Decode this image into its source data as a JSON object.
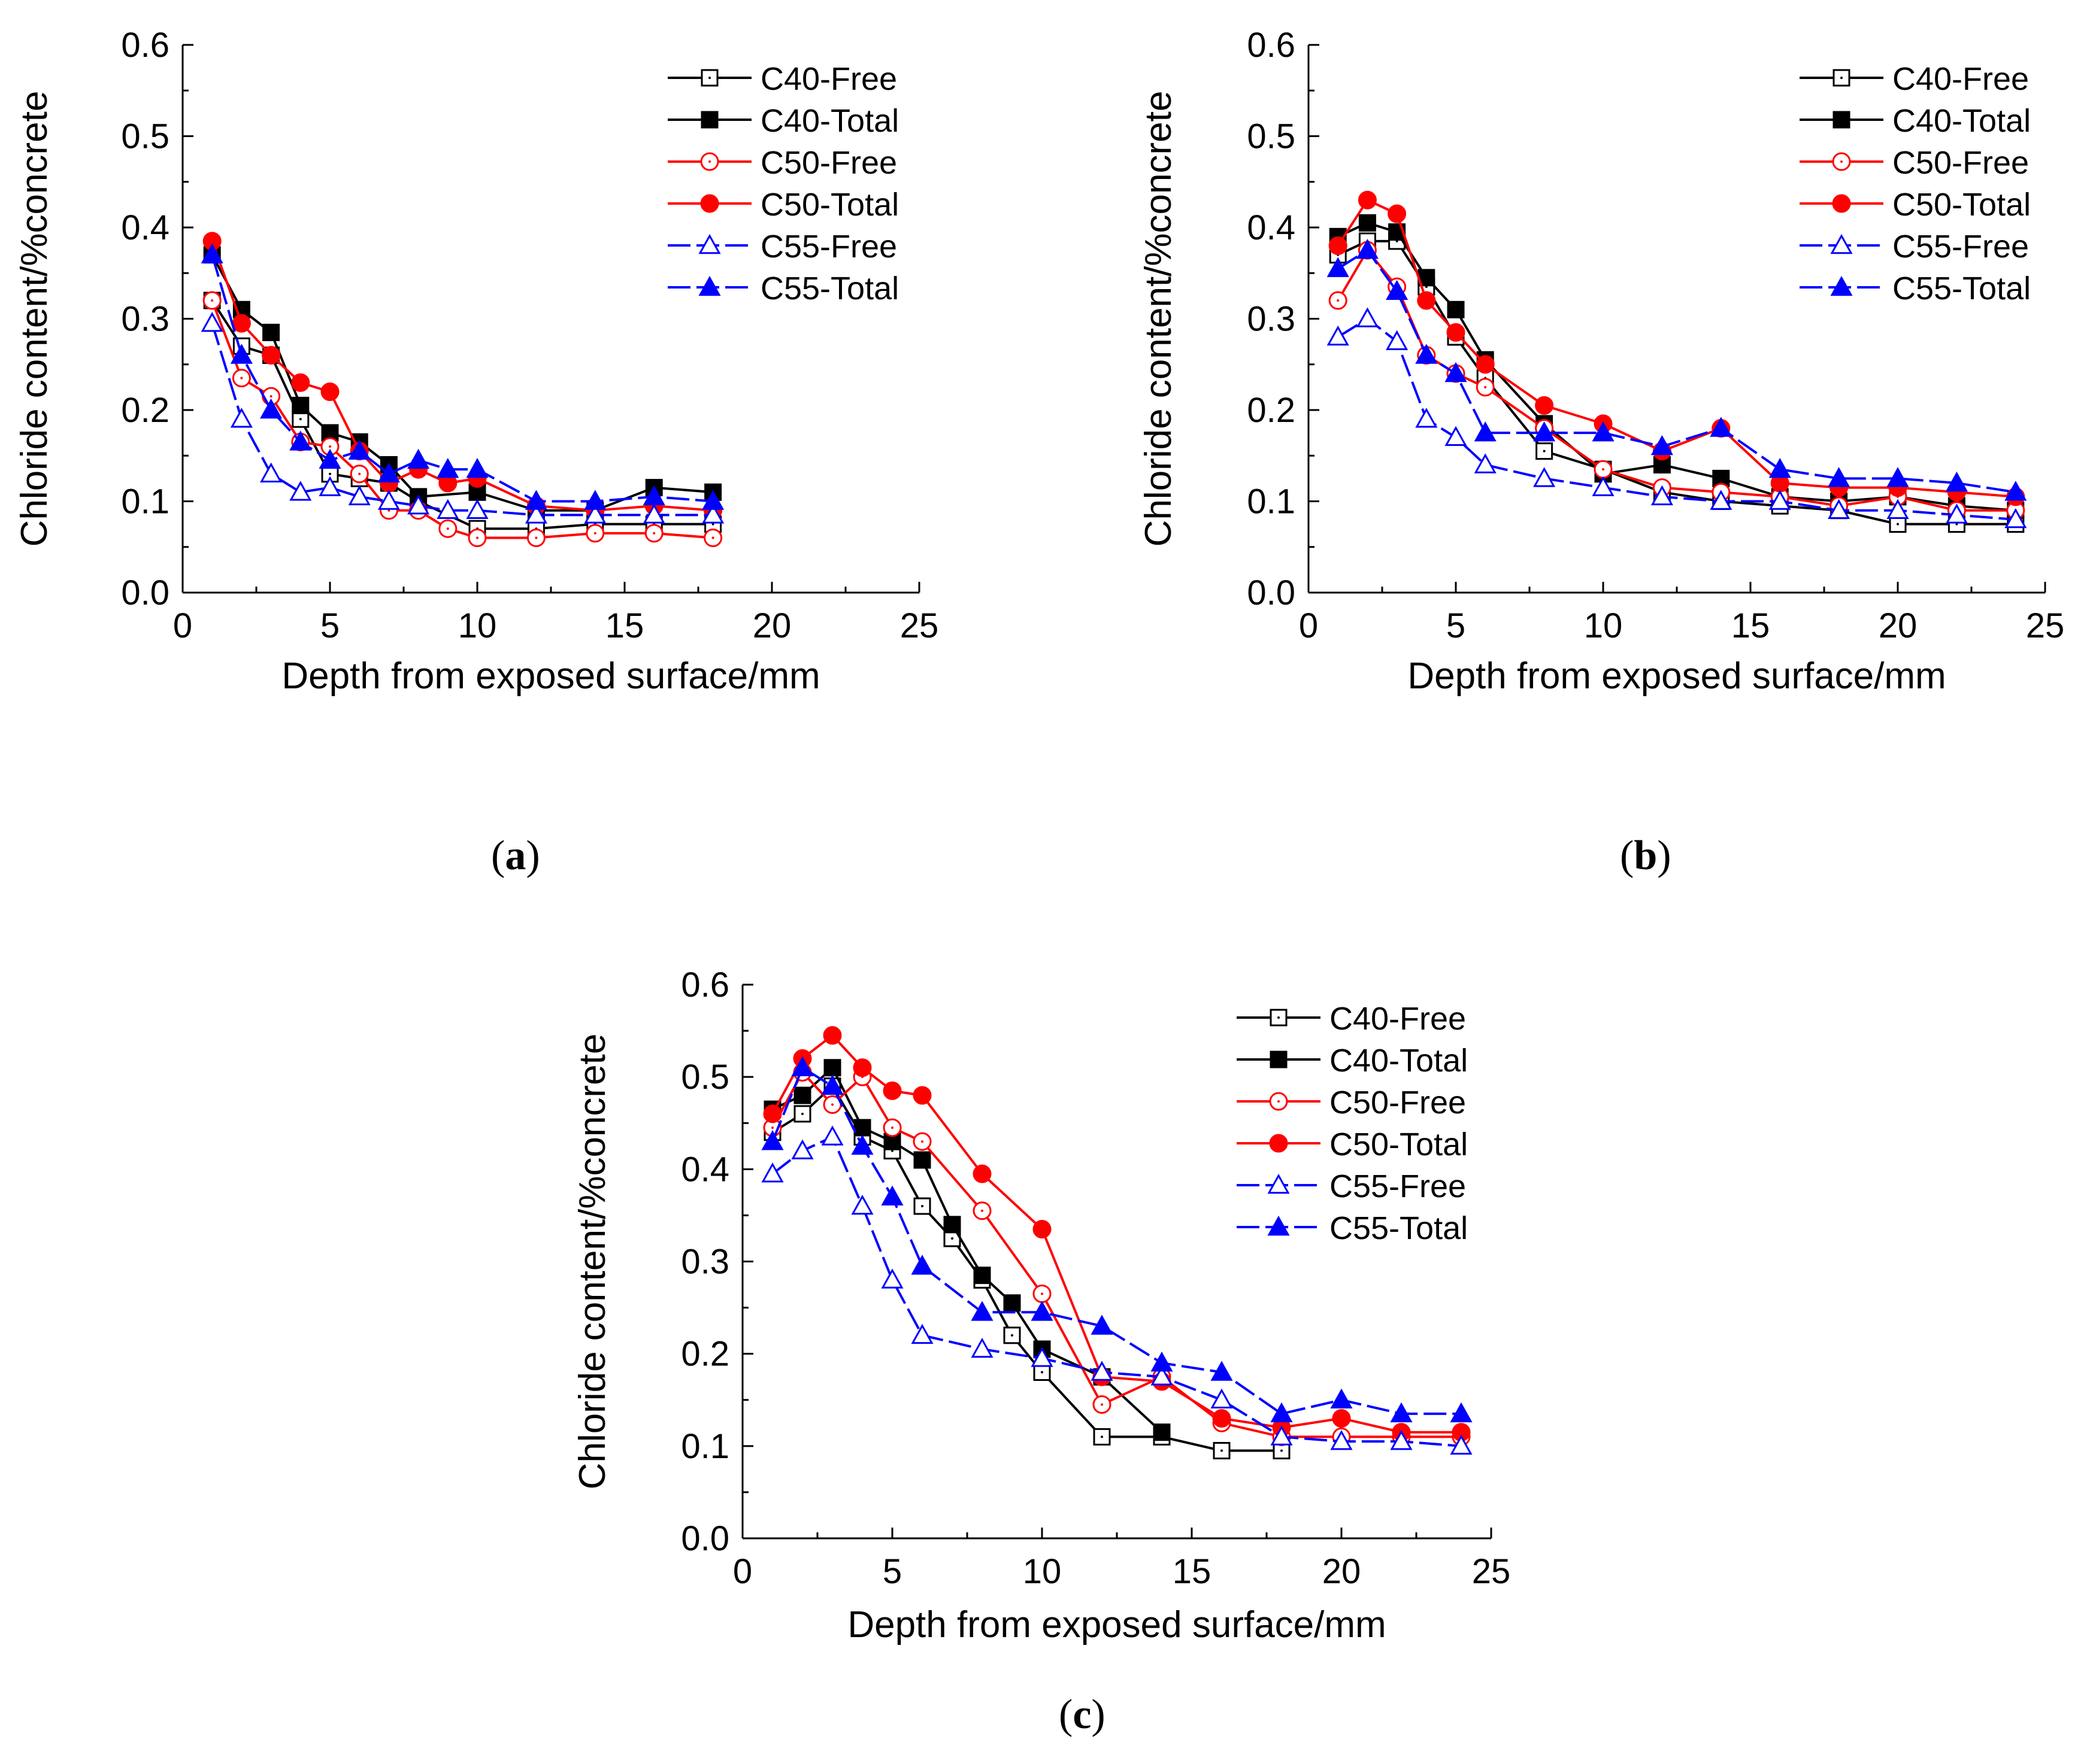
{
  "chart_data": [
    {
      "id": "a",
      "panel_label": "a",
      "type": "line",
      "xlabel": "Depth from exposed surface/mm",
      "ylabel": "Chloride content/%concrete",
      "xlim": [
        0,
        25
      ],
      "ylim": [
        0.0,
        0.6
      ],
      "xticks": [
        "0",
        "5",
        "10",
        "15",
        "20",
        "25"
      ],
      "yticks": [
        "0.0",
        "0.1",
        "0.2",
        "0.3",
        "0.4",
        "0.5",
        "0.6"
      ],
      "legend_position": "top-right",
      "grid": false,
      "series": [
        {
          "name": "C40-Free",
          "color": "#000000",
          "marker": "square-open",
          "dashed": false,
          "x": [
            1,
            2,
            3,
            4,
            5,
            6,
            7,
            8,
            10,
            12,
            14,
            16,
            18
          ],
          "y": [
            0.32,
            0.27,
            0.26,
            0.19,
            0.13,
            0.125,
            0.12,
            0.1,
            0.07,
            0.07,
            0.075,
            0.075,
            0.075
          ]
        },
        {
          "name": "C40-Total",
          "color": "#000000",
          "marker": "square-filled",
          "dashed": false,
          "x": [
            1,
            2,
            3,
            4,
            5,
            6,
            7,
            8,
            10,
            12,
            14,
            16,
            18
          ],
          "y": [
            0.37,
            0.31,
            0.285,
            0.205,
            0.175,
            0.165,
            0.14,
            0.105,
            0.11,
            0.09,
            0.09,
            0.115,
            0.11
          ]
        },
        {
          "name": "C50-Free",
          "color": "#ff0000",
          "marker": "circle-open",
          "dashed": false,
          "x": [
            1,
            2,
            3,
            4,
            5,
            6,
            7,
            8,
            9,
            10,
            12,
            14,
            16,
            18
          ],
          "y": [
            0.32,
            0.235,
            0.215,
            0.165,
            0.16,
            0.13,
            0.09,
            0.09,
            0.07,
            0.06,
            0.06,
            0.065,
            0.065,
            0.06
          ]
        },
        {
          "name": "C50-Total",
          "color": "#ff0000",
          "marker": "circle-filled",
          "dashed": false,
          "x": [
            1,
            2,
            3,
            4,
            5,
            6,
            7,
            8,
            9,
            10,
            12,
            14,
            16,
            18
          ],
          "y": [
            0.385,
            0.295,
            0.26,
            0.23,
            0.22,
            0.155,
            0.12,
            0.135,
            0.12,
            0.125,
            0.095,
            0.09,
            0.095,
            0.09
          ]
        },
        {
          "name": "C55-Free",
          "color": "#0000ff",
          "marker": "triangle-open",
          "dashed": true,
          "x": [
            1,
            2,
            3,
            4,
            5,
            6,
            7,
            8,
            9,
            10,
            12,
            14,
            16,
            18
          ],
          "y": [
            0.295,
            0.19,
            0.13,
            0.11,
            0.115,
            0.105,
            0.1,
            0.095,
            0.09,
            0.09,
            0.085,
            0.085,
            0.085,
            0.085
          ]
        },
        {
          "name": "C55-Total",
          "color": "#0000ff",
          "marker": "triangle-filled",
          "dashed": true,
          "x": [
            1,
            2,
            3,
            4,
            5,
            6,
            7,
            8,
            9,
            10,
            12,
            14,
            16,
            18
          ],
          "y": [
            0.37,
            0.26,
            0.2,
            0.165,
            0.145,
            0.155,
            0.13,
            0.145,
            0.135,
            0.135,
            0.1,
            0.1,
            0.105,
            0.1
          ]
        }
      ]
    },
    {
      "id": "b",
      "panel_label": "b",
      "type": "line",
      "xlabel": "Depth from exposed surface/mm",
      "ylabel": "Chloride content/%concrete",
      "xlim": [
        0,
        25
      ],
      "ylim": [
        0.0,
        0.6
      ],
      "xticks": [
        "0",
        "5",
        "10",
        "15",
        "20",
        "25"
      ],
      "yticks": [
        "0.0",
        "0.1",
        "0.2",
        "0.3",
        "0.4",
        "0.5",
        "0.6"
      ],
      "legend_position": "top-right",
      "grid": false,
      "series": [
        {
          "name": "C40-Free",
          "color": "#000000",
          "marker": "square-open",
          "dashed": false,
          "x": [
            1,
            2,
            3,
            4,
            5,
            6,
            8,
            10,
            12,
            14,
            16,
            18,
            20,
            22,
            24
          ],
          "y": [
            0.37,
            0.385,
            0.385,
            0.335,
            0.28,
            0.235,
            0.155,
            0.135,
            0.11,
            0.1,
            0.095,
            0.09,
            0.075,
            0.075,
            0.075
          ]
        },
        {
          "name": "C40-Total",
          "color": "#000000",
          "marker": "square-filled",
          "dashed": false,
          "x": [
            1,
            2,
            3,
            4,
            5,
            6,
            8,
            10,
            12,
            14,
            16,
            18,
            20,
            22,
            24
          ],
          "y": [
            0.39,
            0.405,
            0.395,
            0.345,
            0.31,
            0.255,
            0.185,
            0.13,
            0.14,
            0.125,
            0.105,
            0.1,
            0.105,
            0.095,
            0.09
          ]
        },
        {
          "name": "C50-Free",
          "color": "#ff0000",
          "marker": "circle-open",
          "dashed": false,
          "x": [
            1,
            2,
            3,
            4,
            5,
            6,
            8,
            10,
            12,
            14,
            16,
            18,
            20,
            22,
            24
          ],
          "y": [
            0.32,
            0.375,
            0.335,
            0.26,
            0.24,
            0.225,
            0.18,
            0.135,
            0.115,
            0.11,
            0.105,
            0.095,
            0.105,
            0.09,
            0.09
          ]
        },
        {
          "name": "C50-Total",
          "color": "#ff0000",
          "marker": "circle-filled",
          "dashed": false,
          "x": [
            1,
            2,
            3,
            4,
            5,
            6,
            8,
            10,
            12,
            14,
            16,
            18,
            20,
            22,
            24
          ],
          "y": [
            0.38,
            0.43,
            0.415,
            0.32,
            0.285,
            0.25,
            0.205,
            0.185,
            0.155,
            0.18,
            0.12,
            0.115,
            0.115,
            0.11,
            0.105
          ]
        },
        {
          "name": "C55-Free",
          "color": "#0000ff",
          "marker": "triangle-open",
          "dashed": true,
          "x": [
            1,
            2,
            3,
            4,
            5,
            6,
            8,
            10,
            12,
            14,
            16,
            18,
            20,
            22,
            24
          ],
          "y": [
            0.28,
            0.3,
            0.275,
            0.19,
            0.17,
            0.14,
            0.125,
            0.115,
            0.105,
            0.1,
            0.1,
            0.09,
            0.09,
            0.085,
            0.08
          ]
        },
        {
          "name": "C55-Total",
          "color": "#0000ff",
          "marker": "triangle-filled",
          "dashed": true,
          "x": [
            1,
            2,
            3,
            4,
            5,
            6,
            8,
            10,
            12,
            14,
            16,
            18,
            20,
            22,
            24
          ],
          "y": [
            0.355,
            0.375,
            0.33,
            0.26,
            0.24,
            0.175,
            0.175,
            0.175,
            0.16,
            0.18,
            0.135,
            0.125,
            0.125,
            0.12,
            0.11
          ]
        }
      ]
    },
    {
      "id": "c",
      "panel_label": "c",
      "type": "line",
      "xlabel": "Depth from exposed surface/mm",
      "ylabel": "Chloride content/%concrete",
      "xlim": [
        0,
        25
      ],
      "ylim": [
        0.0,
        0.6
      ],
      "xticks": [
        "0",
        "5",
        "10",
        "15",
        "20",
        "25"
      ],
      "yticks": [
        "0.0",
        "0.1",
        "0.2",
        "0.3",
        "0.4",
        "0.5",
        "0.6"
      ],
      "legend_position": "top-right",
      "grid": false,
      "series": [
        {
          "name": "C40-Free",
          "color": "#000000",
          "marker": "square-open",
          "dashed": false,
          "x": [
            1,
            2,
            3,
            4,
            5,
            6,
            7,
            8,
            9,
            10,
            12,
            14,
            16,
            18
          ],
          "y": [
            0.44,
            0.46,
            0.49,
            0.435,
            0.42,
            0.36,
            0.325,
            0.28,
            0.22,
            0.18,
            0.11,
            0.11,
            0.095,
            0.095
          ]
        },
        {
          "name": "C40-Total",
          "color": "#000000",
          "marker": "square-filled",
          "dashed": false,
          "x": [
            1,
            2,
            3,
            4,
            5,
            6,
            7,
            8,
            9,
            10,
            12,
            14
          ],
          "y": [
            0.465,
            0.48,
            0.51,
            0.445,
            0.43,
            0.41,
            0.34,
            0.285,
            0.255,
            0.205,
            0.175,
            0.115
          ]
        },
        {
          "name": "C50-Free",
          "color": "#ff0000",
          "marker": "circle-open",
          "dashed": false,
          "x": [
            1,
            2,
            3,
            4,
            5,
            6,
            8,
            10,
            12,
            14,
            16,
            18,
            20,
            22,
            24
          ],
          "y": [
            0.445,
            0.505,
            0.47,
            0.5,
            0.445,
            0.43,
            0.355,
            0.265,
            0.145,
            0.175,
            0.125,
            0.11,
            0.11,
            0.11,
            0.11
          ]
        },
        {
          "name": "C50-Total",
          "color": "#ff0000",
          "marker": "circle-filled",
          "dashed": false,
          "x": [
            1,
            2,
            3,
            4,
            5,
            6,
            8,
            10,
            12,
            14,
            16,
            18,
            20,
            22,
            24
          ],
          "y": [
            0.46,
            0.52,
            0.545,
            0.51,
            0.485,
            0.48,
            0.395,
            0.335,
            0.175,
            0.17,
            0.13,
            0.12,
            0.13,
            0.115,
            0.115
          ]
        },
        {
          "name": "C55-Free",
          "color": "#0000ff",
          "marker": "triangle-open",
          "dashed": true,
          "x": [
            1,
            2,
            3,
            4,
            5,
            6,
            8,
            10,
            12,
            14,
            16,
            18,
            20,
            22,
            24
          ],
          "y": [
            0.395,
            0.42,
            0.435,
            0.36,
            0.28,
            0.22,
            0.205,
            0.195,
            0.18,
            0.175,
            0.15,
            0.11,
            0.105,
            0.105,
            0.1
          ]
        },
        {
          "name": "C55-Total",
          "color": "#0000ff",
          "marker": "triangle-filled",
          "dashed": true,
          "x": [
            1,
            2,
            3,
            4,
            5,
            6,
            8,
            10,
            12,
            14,
            16,
            18,
            20,
            22,
            24
          ],
          "y": [
            0.43,
            0.51,
            0.49,
            0.425,
            0.37,
            0.295,
            0.245,
            0.245,
            0.23,
            0.19,
            0.18,
            0.135,
            0.15,
            0.135,
            0.135
          ]
        }
      ]
    }
  ]
}
